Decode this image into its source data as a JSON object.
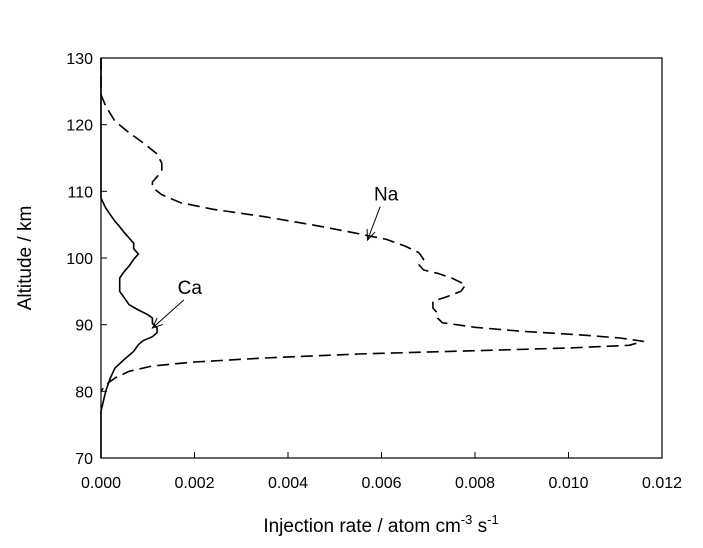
{
  "chart_data": {
    "type": "line",
    "xlabel": "Injection rate / atom cm",
    "xlabel_sup1": "-3",
    "xlabel_mid": " s",
    "xlabel_sup2": "-1",
    "ylabel": "Altitude / km",
    "xlim": [
      0,
      0.012
    ],
    "ylim": [
      70,
      130
    ],
    "x_ticks": [
      "0.000",
      "0.002",
      "0.004",
      "0.006",
      "0.008",
      "0.010",
      "0.012"
    ],
    "y_ticks": [
      "70",
      "80",
      "90",
      "100",
      "110",
      "120",
      "130"
    ],
    "grid": false,
    "legend": "none",
    "series": [
      {
        "name": "Na",
        "style": "dashed",
        "color": "#000000",
        "points": [
          [
            0.0,
            130.0
          ],
          [
            0.0,
            124.5
          ],
          [
            0.0001,
            122.8
          ],
          [
            0.0003,
            120.5
          ],
          [
            0.0006,
            118.8
          ],
          [
            0.0009,
            117.3
          ],
          [
            0.0012,
            115.6
          ],
          [
            0.0013,
            114.2
          ],
          [
            0.0013,
            113.0
          ],
          [
            0.0012,
            112.2
          ],
          [
            0.0011,
            111.4
          ],
          [
            0.0011,
            110.6
          ],
          [
            0.0013,
            109.5
          ],
          [
            0.0017,
            108.3
          ],
          [
            0.0024,
            107.3
          ],
          [
            0.0035,
            106.2
          ],
          [
            0.0045,
            105.0
          ],
          [
            0.0054,
            103.8
          ],
          [
            0.0061,
            102.8
          ],
          [
            0.0065,
            101.8
          ],
          [
            0.0068,
            100.8
          ],
          [
            0.0069,
            99.8
          ],
          [
            0.0068,
            99.0
          ],
          [
            0.0069,
            98.2
          ],
          [
            0.0072,
            97.7
          ],
          [
            0.0075,
            97.0
          ],
          [
            0.0078,
            96.0
          ],
          [
            0.0077,
            95.0
          ],
          [
            0.0074,
            94.2
          ],
          [
            0.0071,
            93.5
          ],
          [
            0.0071,
            92.5
          ],
          [
            0.0072,
            91.7
          ],
          [
            0.0072,
            91.0
          ],
          [
            0.0073,
            90.3
          ],
          [
            0.008,
            89.6
          ],
          [
            0.009,
            89.0
          ],
          [
            0.0102,
            88.5
          ],
          [
            0.0111,
            88.0
          ],
          [
            0.0116,
            87.5
          ],
          [
            0.0113,
            86.9
          ],
          [
            0.01,
            86.5
          ],
          [
            0.008,
            86.1
          ],
          [
            0.0055,
            85.6
          ],
          [
            0.0035,
            85.0
          ],
          [
            0.002,
            84.4
          ],
          [
            0.0011,
            83.8
          ],
          [
            0.0006,
            83.0
          ],
          [
            0.0003,
            82.0
          ],
          [
            0.0001,
            81.0
          ],
          [
            0.0,
            80.0
          ]
        ]
      },
      {
        "name": "Ca",
        "style": "solid",
        "color": "#000000",
        "points": [
          [
            0.0,
            130.0
          ],
          [
            0.0,
            118.0
          ],
          [
            0.0,
            112.0
          ],
          [
            0.0,
            109.0
          ],
          [
            0.0001,
            107.5
          ],
          [
            0.0002,
            106.5
          ],
          [
            0.0003,
            105.5
          ],
          [
            0.0004,
            104.7
          ],
          [
            0.0005,
            103.8
          ],
          [
            0.0006,
            103.0
          ],
          [
            0.0007,
            102.2
          ],
          [
            0.0007,
            101.4
          ],
          [
            0.0008,
            100.6
          ],
          [
            0.0007,
            99.8
          ],
          [
            0.0006,
            98.8
          ],
          [
            0.0005,
            98.0
          ],
          [
            0.0004,
            97.0
          ],
          [
            0.0004,
            96.0
          ],
          [
            0.0004,
            95.0
          ],
          [
            0.0005,
            94.0
          ],
          [
            0.0006,
            93.0
          ],
          [
            0.0008,
            92.2
          ],
          [
            0.001,
            91.5
          ],
          [
            0.0011,
            91.0
          ],
          [
            0.0011,
            90.2
          ],
          [
            0.0012,
            89.5
          ],
          [
            0.0012,
            88.8
          ],
          [
            0.0011,
            88.2
          ],
          [
            0.0009,
            87.6
          ],
          [
            0.0008,
            87.0
          ],
          [
            0.0007,
            86.0
          ],
          [
            0.0005,
            84.8
          ],
          [
            0.0003,
            83.5
          ],
          [
            0.0002,
            82.0
          ],
          [
            0.0001,
            80.0
          ],
          [
            0.0,
            77.0
          ],
          [
            0.0,
            73.0
          ],
          [
            0.0,
            70.0
          ]
        ]
      }
    ],
    "annotations": [
      {
        "text": "Na",
        "label_at": [
          0.0061,
          108.6
        ],
        "arrow_to": [
          0.0057,
          102.7
        ]
      },
      {
        "text": "Ca",
        "label_at": [
          0.0019,
          94.6
        ],
        "arrow_to": [
          0.0011,
          89.5
        ]
      }
    ]
  }
}
